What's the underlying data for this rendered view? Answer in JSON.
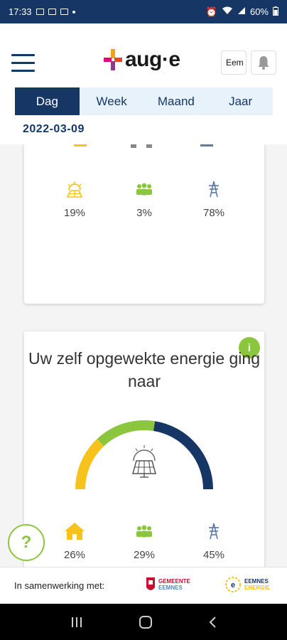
{
  "status_bar": {
    "time": "17:33",
    "battery": "60%"
  },
  "header": {
    "logo_text": "aug·e",
    "language_label": "Eem",
    "tabs": [
      {
        "label": "Dag",
        "active": true
      },
      {
        "label": "Week",
        "active": false
      },
      {
        "label": "Maand",
        "active": false
      },
      {
        "label": "Jaar",
        "active": false
      }
    ],
    "date": "2022-03-09"
  },
  "card1": {
    "stats": [
      {
        "icon": "solar-sun-icon",
        "value": "19%"
      },
      {
        "icon": "community-icon",
        "value": "3%"
      },
      {
        "icon": "power-grid-icon",
        "value": "78%"
      }
    ]
  },
  "card2": {
    "title": "Uw zelf opgewekte energie ging naar",
    "info_label": "i",
    "gauge": {
      "segments": [
        26,
        29,
        45
      ]
    },
    "stats": [
      {
        "icon": "house-icon",
        "value": "26%"
      },
      {
        "icon": "community-icon",
        "value": "29%"
      },
      {
        "icon": "power-grid-icon",
        "value": "45%"
      }
    ]
  },
  "help_label": "?",
  "footer": {
    "label": "In samenwerking met:",
    "partner1_line1": "GEMEENTE",
    "partner1_line2": "EEMNES",
    "partner2_line1": "EEMNES",
    "partner2_line2": "ENERGIE"
  },
  "colors": {
    "navy": "#163766",
    "green": "#8cc63f",
    "yellow": "#f6c21b",
    "grid_blue": "#5a7aa8"
  }
}
